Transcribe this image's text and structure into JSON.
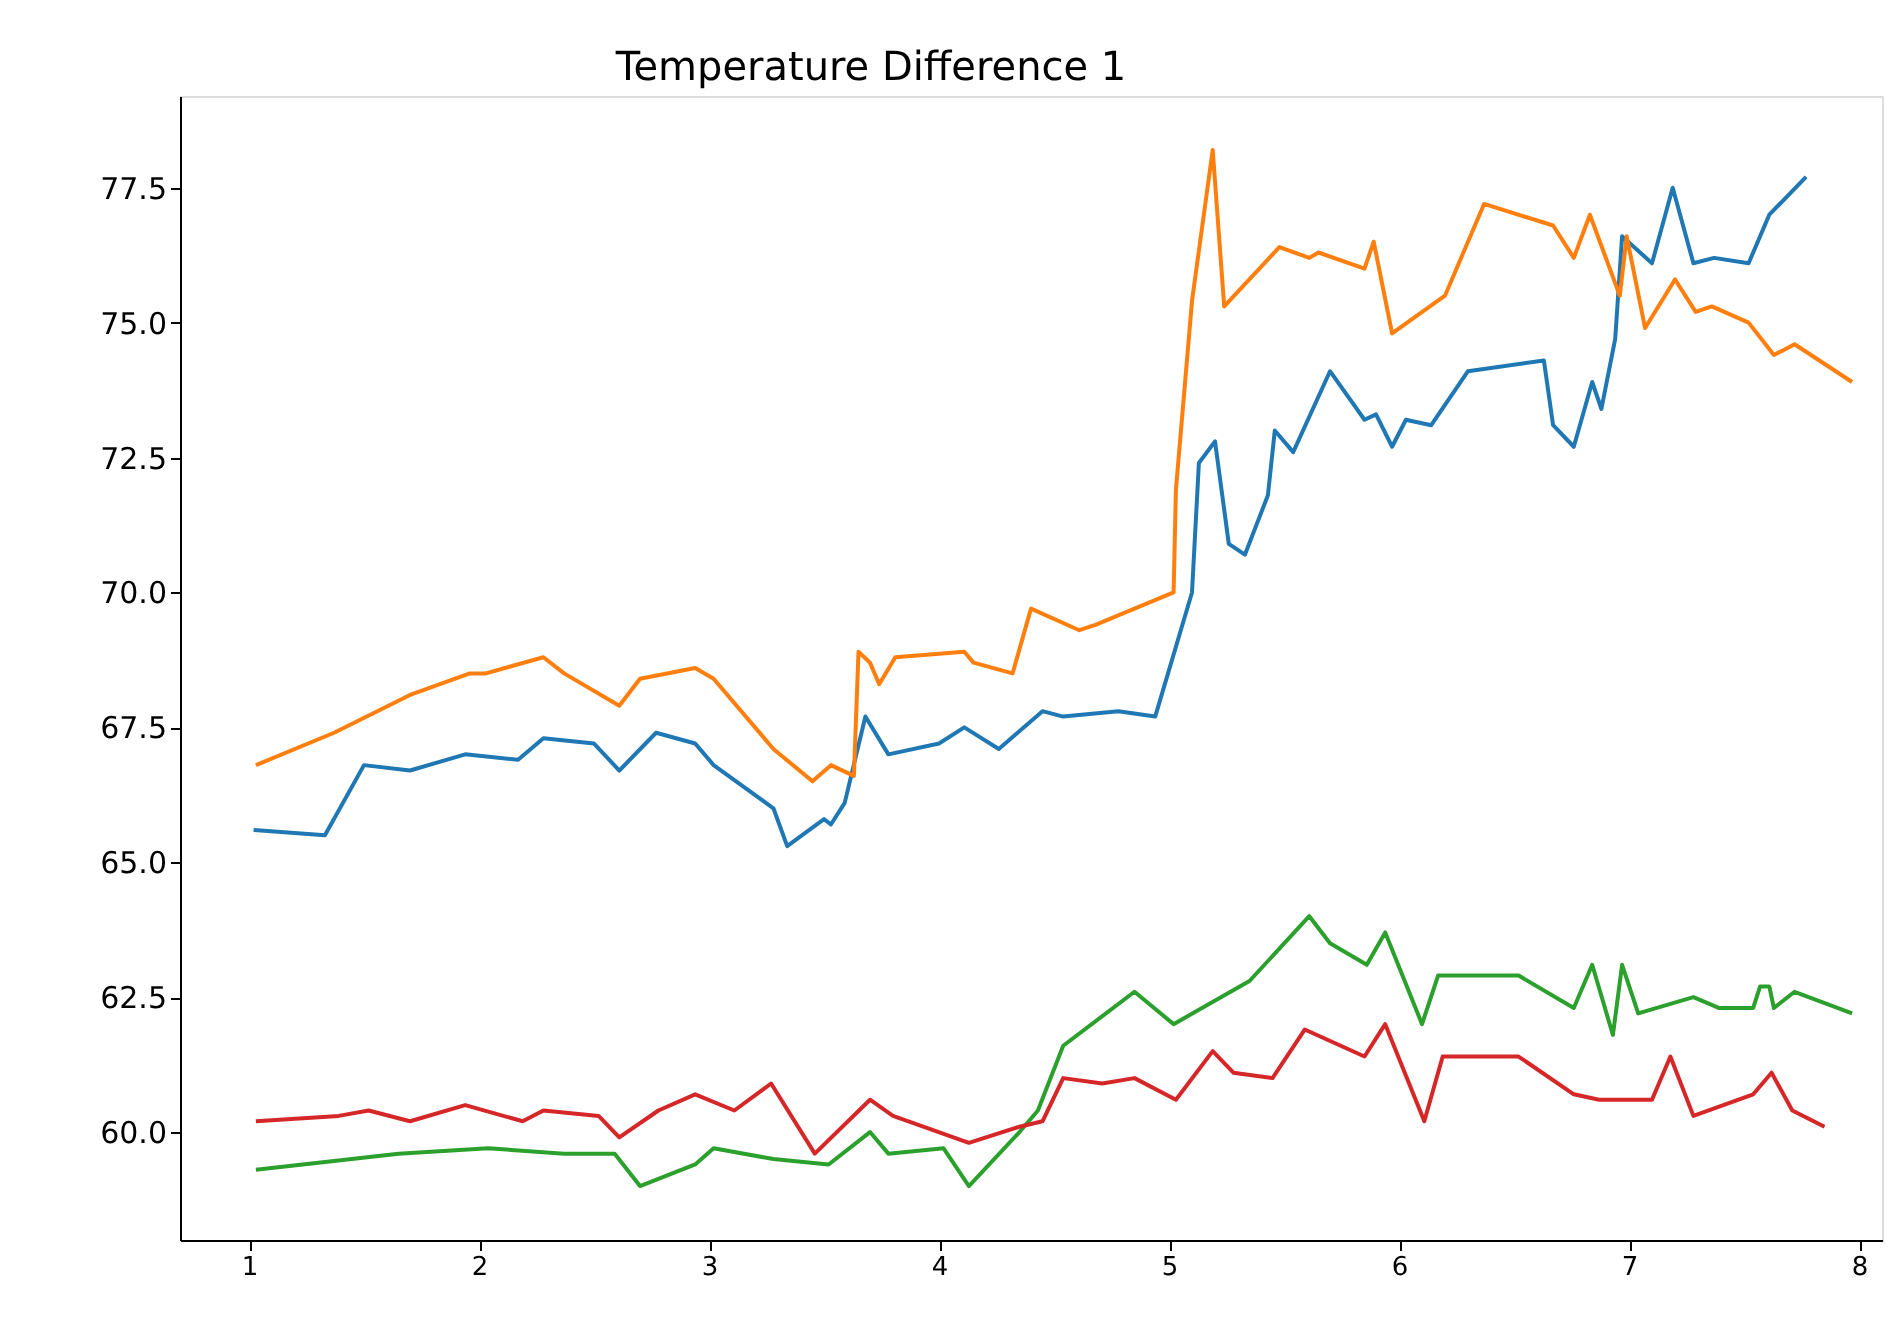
{
  "chart_data": {
    "type": "line",
    "title": "Temperature Difference 1",
    "xlim": [
      0.7,
      8.1
    ],
    "xticks": [
      1,
      2,
      3,
      4,
      5,
      6,
      7,
      8
    ],
    "ylim": [
      58.0,
      79.2
    ],
    "yticks": [
      {
        "value": 60,
        "label": "60.0"
      },
      62.5,
      {
        "value": 65,
        "label": "65.0"
      },
      67.5,
      {
        "value": 70,
        "label": "70.0"
      },
      72.5,
      {
        "value": 75,
        "label": "75.0"
      },
      77.5
    ],
    "grid": false,
    "legend": false,
    "marker": "none",
    "line_style": "solid",
    "series": [
      {
        "color": "#1f77b4",
        "x": [
          1.02,
          1.33,
          1.5,
          1.7,
          1.94,
          2.17,
          2.28,
          2.5,
          2.61,
          2.77,
          2.94,
          3.02,
          3.28,
          3.34,
          3.5,
          3.53,
          3.59,
          3.68,
          3.78,
          4.0,
          4.11,
          4.26,
          4.45,
          4.54,
          4.78,
          4.94,
          5.1,
          5.13,
          5.2,
          5.26,
          5.33,
          5.43,
          5.46,
          5.54,
          5.7,
          5.85,
          5.9,
          5.97,
          6.03,
          6.14,
          6.3,
          6.63,
          6.67,
          6.76,
          6.84,
          6.88,
          6.94,
          6.97,
          7.1,
          7.19,
          7.28,
          7.37,
          7.52,
          7.61,
          7.77
        ],
        "values": [
          65.6,
          65.5,
          66.8,
          66.7,
          67.0,
          66.9,
          67.3,
          67.2,
          66.7,
          67.4,
          67.2,
          66.8,
          66.0,
          65.3,
          65.8,
          65.7,
          66.1,
          67.7,
          67.0,
          67.2,
          67.5,
          67.1,
          67.8,
          67.7,
          67.8,
          67.7,
          70.0,
          72.4,
          72.8,
          70.9,
          70.7,
          71.8,
          73.0,
          72.6,
          74.1,
          73.2,
          73.3,
          72.7,
          73.2,
          73.1,
          74.1,
          74.3,
          73.1,
          72.7,
          73.9,
          73.4,
          74.7,
          76.6,
          76.1,
          77.5,
          76.1,
          76.2,
          76.1,
          77.0,
          77.7
        ]
      },
      {
        "color": "#ff7f0e",
        "x": [
          1.03,
          1.37,
          1.7,
          1.96,
          2.03,
          2.28,
          2.37,
          2.61,
          2.7,
          2.94,
          3.02,
          3.28,
          3.45,
          3.53,
          3.63,
          3.65,
          3.7,
          3.74,
          3.81,
          4.11,
          4.15,
          4.32,
          4.4,
          4.61,
          4.68,
          5.02,
          5.03,
          5.1,
          5.19,
          5.24,
          5.48,
          5.61,
          5.65,
          5.85,
          5.89,
          5.97,
          6.2,
          6.37,
          6.67,
          6.76,
          6.83,
          6.96,
          6.99,
          7.07,
          7.2,
          7.29,
          7.36,
          7.52,
          7.63,
          7.72,
          7.97
        ],
        "values": [
          66.8,
          67.4,
          68.1,
          68.5,
          68.5,
          68.8,
          68.5,
          67.9,
          68.4,
          68.6,
          68.4,
          67.1,
          66.5,
          66.8,
          66.6,
          68.9,
          68.7,
          68.3,
          68.8,
          68.9,
          68.7,
          68.5,
          69.7,
          69.3,
          69.4,
          70.0,
          71.9,
          75.4,
          78.2,
          75.3,
          76.4,
          76.2,
          76.3,
          76.0,
          76.5,
          74.8,
          75.5,
          77.2,
          76.8,
          76.2,
          77.0,
          75.5,
          76.6,
          74.9,
          75.8,
          75.2,
          75.3,
          75.0,
          74.4,
          74.6,
          73.9
        ]
      },
      {
        "color": "#2ca02c",
        "x": [
          1.03,
          1.65,
          2.04,
          2.37,
          2.59,
          2.7,
          2.94,
          3.02,
          3.28,
          3.52,
          3.7,
          3.78,
          4.02,
          4.13,
          4.35,
          4.43,
          4.54,
          4.85,
          5.02,
          5.35,
          5.61,
          5.7,
          5.86,
          5.94,
          6.1,
          6.17,
          6.52,
          6.76,
          6.84,
          6.93,
          6.97,
          7.04,
          7.28,
          7.39,
          7.54,
          7.57,
          7.61,
          7.63,
          7.72,
          7.97
        ],
        "values": [
          59.3,
          59.6,
          59.7,
          59.6,
          59.6,
          59.0,
          59.4,
          59.7,
          59.5,
          59.4,
          60.0,
          59.6,
          59.7,
          59.0,
          60.0,
          60.4,
          61.6,
          62.6,
          62.0,
          62.8,
          64.0,
          63.5,
          63.1,
          63.7,
          62.0,
          62.9,
          62.9,
          62.3,
          63.1,
          61.8,
          63.1,
          62.2,
          62.5,
          62.3,
          62.3,
          62.7,
          62.7,
          62.3,
          62.6,
          62.2
        ]
      },
      {
        "color": "#d62728",
        "x": [
          1.03,
          1.39,
          1.52,
          1.7,
          1.94,
          2.19,
          2.28,
          2.52,
          2.61,
          2.78,
          2.94,
          3.11,
          3.27,
          3.46,
          3.7,
          3.8,
          4.13,
          4.35,
          4.45,
          4.54,
          4.71,
          4.85,
          5.03,
          5.19,
          5.28,
          5.45,
          5.59,
          5.85,
          5.94,
          6.11,
          6.19,
          6.52,
          6.76,
          6.87,
          7.1,
          7.18,
          7.28,
          7.54,
          7.62,
          7.71,
          7.85
        ],
        "values": [
          60.2,
          60.3,
          60.4,
          60.2,
          60.5,
          60.2,
          60.4,
          60.3,
          59.9,
          60.4,
          60.7,
          60.4,
          60.9,
          59.6,
          60.6,
          60.3,
          59.8,
          60.1,
          60.2,
          61.0,
          60.9,
          61.0,
          60.6,
          61.5,
          61.1,
          61.0,
          61.9,
          61.4,
          62.0,
          60.2,
          61.4,
          61.4,
          60.7,
          60.6,
          60.6,
          61.4,
          60.3,
          60.7,
          61.1,
          60.4,
          60.1
        ]
      }
    ]
  }
}
